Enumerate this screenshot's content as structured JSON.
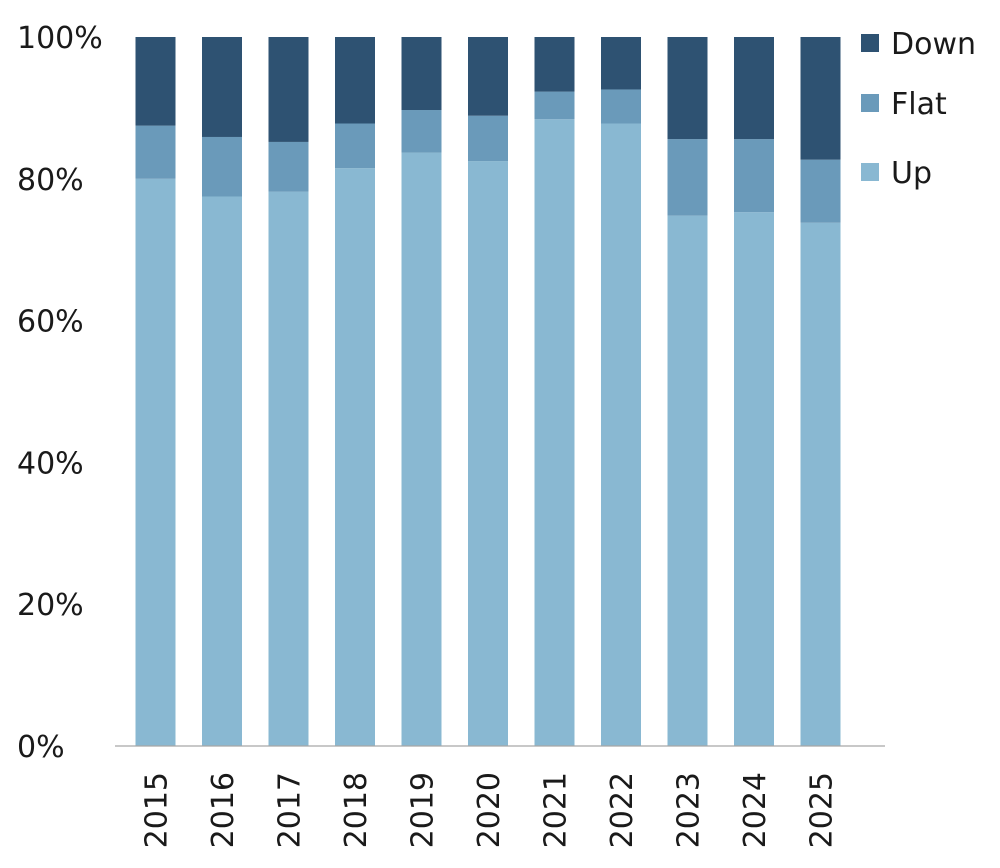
{
  "chart_data": {
    "type": "bar",
    "stacked": true,
    "categories": [
      "2015",
      "2016",
      "2017",
      "2018",
      "2019",
      "2020",
      "2021",
      "2022",
      "2023",
      "2024",
      "2025"
    ],
    "series": [
      {
        "name": "Up",
        "color": "#89b8d2",
        "values": [
          80.0,
          77.5,
          78.2,
          81.5,
          83.7,
          82.5,
          88.4,
          87.8,
          74.8,
          75.3,
          73.8
        ]
      },
      {
        "name": "Flat",
        "color": "#6a9aba",
        "values": [
          7.5,
          8.4,
          7.0,
          6.3,
          6.0,
          6.4,
          3.9,
          4.8,
          10.8,
          10.3,
          8.9
        ]
      },
      {
        "name": "Down",
        "color": "#2e5272",
        "values": [
          12.5,
          14.1,
          14.8,
          12.2,
          10.3,
          11.1,
          7.7,
          7.4,
          14.4,
          14.4,
          17.3
        ]
      }
    ],
    "ylim": [
      0,
      100
    ],
    "yticks": [
      "0%",
      "20%",
      "40%",
      "60%",
      "80%",
      "100%"
    ],
    "ytick_values": [
      0,
      20,
      40,
      60,
      80,
      100
    ],
    "legend": {
      "position": "top-right",
      "order": [
        "Down",
        "Flat",
        "Up"
      ]
    },
    "grid": false,
    "xlabel": "",
    "ylabel": "",
    "title": ""
  }
}
